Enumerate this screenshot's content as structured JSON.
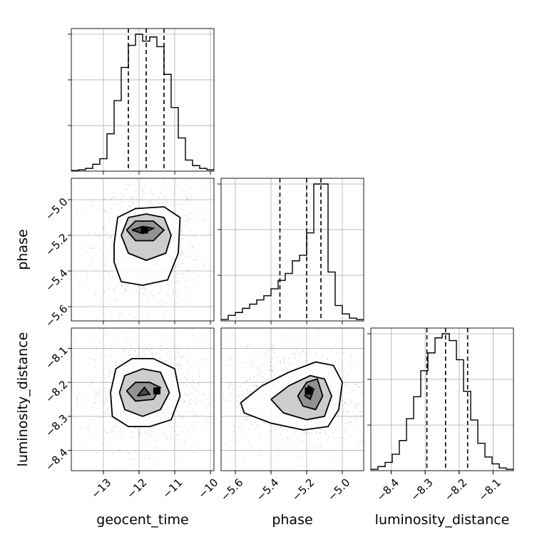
{
  "chart_data": {
    "type": "corner",
    "parameters": [
      "geocent_time",
      "phase",
      "luminosity_distance"
    ],
    "diagonal": [
      {
        "parameter": "geocent_time",
        "range": [
          -13.9,
          -9.9
        ],
        "xticks": [
          -13,
          -12,
          -11,
          -10
        ],
        "xtick_labels": [
          "−13",
          "−12",
          "−11",
          "−10"
        ],
        "quantiles": [
          -12.3,
          -11.8,
          -11.3
        ],
        "bin_edges": [
          -13.9,
          -13.7,
          -13.5,
          -13.3,
          -13.1,
          -12.9,
          -12.7,
          -12.5,
          -12.3,
          -12.1,
          -11.9,
          -11.7,
          -11.5,
          -11.3,
          -11.1,
          -10.9,
          -10.7,
          -10.5,
          -10.3,
          -10.1,
          -9.9
        ],
        "counts": [
          0.005,
          0.01,
          0.02,
          0.05,
          0.09,
          0.27,
          0.51,
          0.75,
          0.91,
          0.99,
          0.94,
          0.97,
          0.9,
          0.7,
          0.46,
          0.24,
          0.08,
          0.04,
          0.02,
          0.01
        ]
      },
      {
        "parameter": "phase",
        "range": [
          -5.68,
          -4.88
        ],
        "xticks": [
          -5.6,
          -5.4,
          -5.2,
          -5.0
        ],
        "xtick_labels": [
          "−5.6",
          "−5.4",
          "−5.2",
          "−5.0"
        ],
        "quantiles": [
          -5.35,
          -5.2,
          -5.12
        ],
        "bin_edges": [
          -5.68,
          -5.64,
          -5.6,
          -5.56,
          -5.52,
          -5.48,
          -5.44,
          -5.4,
          -5.36,
          -5.32,
          -5.28,
          -5.24,
          -5.2,
          -5.16,
          -5.12,
          -5.08,
          -5.04,
          -5.0,
          -4.96,
          -4.92,
          -4.88
        ],
        "counts": [
          0.01,
          0.04,
          0.06,
          0.09,
          0.12,
          0.15,
          0.18,
          0.23,
          0.29,
          0.34,
          0.43,
          0.47,
          0.63,
          0.98,
          0.98,
          0.35,
          0.11,
          0.05,
          0.02,
          0.01
        ]
      },
      {
        "parameter": "luminosity_distance",
        "range": [
          -8.46,
          -8.04
        ],
        "xticks": [
          -8.4,
          -8.3,
          -8.2,
          -8.1
        ],
        "xtick_labels": [
          "−8.4",
          "−8.3",
          "−8.2",
          "−8.1"
        ],
        "quantiles": [
          -8.295,
          -8.24,
          -8.175
        ],
        "bin_edges": [
          -8.46,
          -8.439,
          -8.418,
          -8.397,
          -8.376,
          -8.355,
          -8.334,
          -8.313,
          -8.292,
          -8.271,
          -8.25,
          -8.229,
          -8.208,
          -8.187,
          -8.166,
          -8.145,
          -8.124,
          -8.103,
          -8.082,
          -8.061,
          -8.04
        ],
        "counts": [
          0.01,
          0.03,
          0.06,
          0.12,
          0.22,
          0.38,
          0.54,
          0.73,
          0.86,
          0.97,
          1.0,
          0.95,
          0.81,
          0.58,
          0.37,
          0.2,
          0.1,
          0.05,
          0.02,
          0.01
        ]
      }
    ],
    "pairs": [
      {
        "x": "geocent_time",
        "y": "phase",
        "xrange": [
          -13.9,
          -9.9
        ],
        "yrange": [
          -5.68,
          -4.88
        ],
        "yticks": [
          -5.6,
          -5.4,
          -5.2,
          -5.0
        ],
        "ytick_labels": [
          "−5.6",
          "−5.4",
          "−5.2",
          "−5.0"
        ],
        "peak": [
          -11.85,
          -5.17
        ],
        "contours": [
          [
            [
              -12.7,
              -5.25
            ],
            [
              -12.6,
              -5.1
            ],
            [
              -12.1,
              -5.05
            ],
            [
              -11.3,
              -5.04
            ],
            [
              -10.85,
              -5.1
            ],
            [
              -10.9,
              -5.3
            ],
            [
              -11.2,
              -5.45
            ],
            [
              -11.9,
              -5.48
            ],
            [
              -12.5,
              -5.46
            ],
            [
              -12.7,
              -5.35
            ],
            [
              -12.7,
              -5.25
            ]
          ],
          [
            [
              -12.5,
              -5.2
            ],
            [
              -12.3,
              -5.1
            ],
            [
              -11.8,
              -5.08
            ],
            [
              -11.3,
              -5.1
            ],
            [
              -11.1,
              -5.2
            ],
            [
              -11.25,
              -5.3
            ],
            [
              -11.8,
              -5.34
            ],
            [
              -12.3,
              -5.3
            ],
            [
              -12.5,
              -5.2
            ]
          ],
          [
            [
              -12.35,
              -5.17
            ],
            [
              -12.1,
              -5.12
            ],
            [
              -11.6,
              -5.12
            ],
            [
              -11.3,
              -5.17
            ],
            [
              -11.6,
              -5.23
            ],
            [
              -12.1,
              -5.23
            ],
            [
              -12.35,
              -5.17
            ]
          ],
          [
            [
              -12.2,
              -5.17
            ],
            [
              -11.9,
              -5.15
            ],
            [
              -11.6,
              -5.16
            ],
            [
              -11.9,
              -5.19
            ],
            [
              -12.2,
              -5.17
            ]
          ]
        ]
      },
      {
        "x": "geocent_time",
        "y": "luminosity_distance",
        "xrange": [
          -13.9,
          -9.9
        ],
        "yrange": [
          -8.46,
          -8.04
        ],
        "yticks": [
          -8.4,
          -8.3,
          -8.2,
          -8.1
        ],
        "ytick_labels": [
          "−8.4",
          "−8.3",
          "−8.2",
          "−8.1"
        ],
        "peak": [
          -11.5,
          -8.225
        ],
        "contours": [
          [
            [
              -12.8,
              -8.23
            ],
            [
              -12.65,
              -8.16
            ],
            [
              -12.2,
              -8.13
            ],
            [
              -11.6,
              -8.13
            ],
            [
              -11.0,
              -8.16
            ],
            [
              -10.85,
              -8.24
            ],
            [
              -11.1,
              -8.31
            ],
            [
              -11.7,
              -8.33
            ],
            [
              -12.3,
              -8.33
            ],
            [
              -12.75,
              -8.3
            ],
            [
              -12.8,
              -8.23
            ]
          ],
          [
            [
              -12.55,
              -8.23
            ],
            [
              -12.4,
              -8.18
            ],
            [
              -11.9,
              -8.16
            ],
            [
              -11.4,
              -8.17
            ],
            [
              -11.15,
              -8.23
            ],
            [
              -11.4,
              -8.28
            ],
            [
              -11.9,
              -8.3
            ],
            [
              -12.4,
              -8.28
            ],
            [
              -12.55,
              -8.23
            ]
          ],
          [
            [
              -12.35,
              -8.225
            ],
            [
              -12.1,
              -8.2
            ],
            [
              -11.7,
              -8.2
            ],
            [
              -11.4,
              -8.215
            ],
            [
              -11.6,
              -8.25
            ],
            [
              -12.1,
              -8.255
            ],
            [
              -12.35,
              -8.225
            ]
          ],
          [
            [
              -12.05,
              -8.24
            ],
            [
              -11.85,
              -8.215
            ],
            [
              -11.7,
              -8.235
            ],
            [
              -12.05,
              -8.24
            ]
          ]
        ]
      },
      {
        "x": "phase",
        "y": "luminosity_distance",
        "xrange": [
          -5.68,
          -4.88
        ],
        "yrange": [
          -8.46,
          -8.04
        ],
        "yticks": [
          -8.4,
          -8.3,
          -8.2,
          -8.1
        ],
        "ytick_labels": [
          "−8.4",
          "−8.3",
          "−8.2",
          "−8.1"
        ],
        "peak": [
          -5.19,
          -8.225
        ],
        "contours": [
          [
            [
              -5.57,
              -8.26
            ],
            [
              -5.45,
              -8.21
            ],
            [
              -5.3,
              -8.17
            ],
            [
              -5.15,
              -8.14
            ],
            [
              -5.05,
              -8.15
            ],
            [
              -5.0,
              -8.2
            ],
            [
              -5.02,
              -8.28
            ],
            [
              -5.08,
              -8.33
            ],
            [
              -5.22,
              -8.34
            ],
            [
              -5.4,
              -8.32
            ],
            [
              -5.55,
              -8.29
            ],
            [
              -5.57,
              -8.26
            ]
          ],
          [
            [
              -5.4,
              -8.25
            ],
            [
              -5.3,
              -8.21
            ],
            [
              -5.18,
              -8.18
            ],
            [
              -5.1,
              -8.19
            ],
            [
              -5.06,
              -8.24
            ],
            [
              -5.1,
              -8.3
            ],
            [
              -5.2,
              -8.31
            ],
            [
              -5.33,
              -8.29
            ],
            [
              -5.4,
              -8.25
            ]
          ],
          [
            [
              -5.25,
              -8.24
            ],
            [
              -5.2,
              -8.2
            ],
            [
              -5.14,
              -8.19
            ],
            [
              -5.11,
              -8.24
            ],
            [
              -5.15,
              -8.28
            ],
            [
              -5.22,
              -8.27
            ],
            [
              -5.25,
              -8.24
            ]
          ],
          [
            [
              -5.21,
              -8.24
            ],
            [
              -5.19,
              -8.21
            ],
            [
              -5.16,
              -8.22
            ],
            [
              -5.18,
              -8.25
            ],
            [
              -5.21,
              -8.24
            ]
          ]
        ]
      }
    ],
    "xlabels": [
      "geocent_time",
      "phase",
      "luminosity_distance"
    ],
    "ylabels": [
      "phase",
      "luminosity_distance"
    ],
    "grid": true,
    "colors": {
      "line": "#000000",
      "density": "#000000",
      "grid": "#b0b0b0"
    }
  }
}
